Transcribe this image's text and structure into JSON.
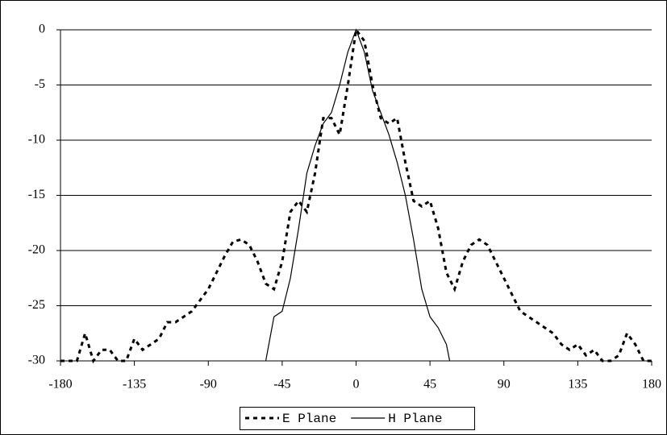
{
  "chart_data": {
    "type": "line",
    "series": [
      {
        "name": "E Plane",
        "color": "#000000",
        "dash": true,
        "x": [
          -180,
          -175,
          -170,
          -165,
          -160,
          -155,
          -150,
          -145,
          -140,
          -135,
          -130,
          -125,
          -120,
          -115,
          -110,
          -105,
          -100,
          -95,
          -90,
          -85,
          -80,
          -75,
          -70,
          -65,
          -60,
          -55,
          -50,
          -45,
          -40,
          -35,
          -30,
          -25,
          -20,
          -15,
          -10,
          -5,
          0,
          5,
          10,
          15,
          20,
          25,
          30,
          35,
          40,
          45,
          50,
          55,
          60,
          65,
          70,
          75,
          80,
          85,
          90,
          95,
          100,
          105,
          110,
          115,
          120,
          125,
          130,
          135,
          140,
          145,
          150,
          155,
          160,
          165,
          170,
          175,
          180
        ],
        "values": [
          -30,
          -30,
          -30,
          -27.5,
          -30,
          -29,
          -29,
          -30,
          -30,
          -28,
          -29,
          -28.5,
          -28,
          -26.5,
          -26.5,
          -26,
          -25.5,
          -24.5,
          -23.5,
          -22,
          -20.5,
          -19.2,
          -19,
          -19.5,
          -21,
          -23,
          -23.5,
          -21,
          -16.5,
          -15.5,
          -16.5,
          -13,
          -8,
          -8,
          -9.5,
          -5,
          0,
          -1,
          -5,
          -8,
          -8.5,
          -8,
          -12,
          -15.5,
          -16,
          -15.5,
          -18,
          -22,
          -23.5,
          -21,
          -19.5,
          -19,
          -19.5,
          -21,
          -22.5,
          -24,
          -25.5,
          -26,
          -26.5,
          -27,
          -27.5,
          -28.5,
          -29,
          -28.5,
          -29.5,
          -29,
          -30,
          -30,
          -29.5,
          -27.5,
          -28.5,
          -30,
          -30
        ]
      },
      {
        "name": "H Plane",
        "color": "#000000",
        "dash": false,
        "x": [
          -55,
          -50,
          -45,
          -40,
          -35,
          -30,
          -25,
          -20,
          -15,
          -10,
          -5,
          0,
          5,
          10,
          15,
          20,
          25,
          30,
          35,
          40,
          45,
          50,
          55,
          57
        ],
        "values": [
          -30,
          -26,
          -25.5,
          -22.5,
          -18,
          -13,
          -10.5,
          -8.5,
          -7.5,
          -5,
          -2,
          0,
          -2,
          -5.5,
          -7.5,
          -9.5,
          -12,
          -15,
          -19,
          -23.5,
          -26,
          -27,
          -28.5,
          -30
        ]
      }
    ],
    "xlim": [
      -180,
      180
    ],
    "xticks": [
      -180,
      -135,
      -90,
      -45,
      0,
      45,
      90,
      135,
      180
    ],
    "ylim": [
      -30,
      0
    ],
    "yticks": [
      0,
      -5,
      -10,
      -15,
      -20,
      -25,
      -30
    ],
    "grid": true,
    "legend": "bottom"
  }
}
